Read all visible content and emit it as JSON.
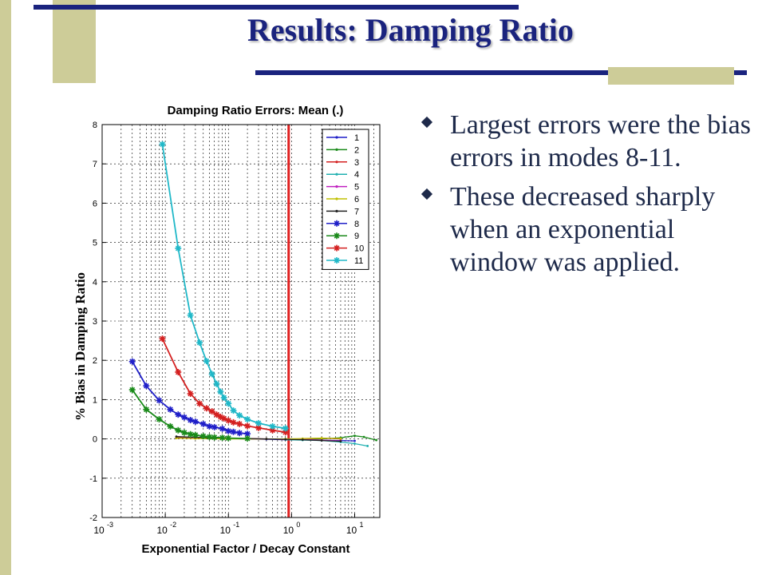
{
  "slide": {
    "title": "Results: Damping Ratio",
    "bullets": [
      "Largest errors were the bias errors in modes 8-11.",
      "These decreased sharply when an exponential window was applied."
    ]
  },
  "colors": {
    "title": "#1a237e",
    "deco_navy": "#1a237e",
    "deco_khaki": "#cdcc98",
    "marker_line": "#e02020"
  },
  "chart_data": {
    "type": "line",
    "title": "Damping Ratio Errors: Mean (.)",
    "xlabel": "Exponential Factor / Decay Constant",
    "ylabel": "% Bias in Damping Ratio",
    "x_scale": "log",
    "xlim": [
      0.001,
      25
    ],
    "ylim": [
      -2,
      8
    ],
    "x_ticks": [
      0.001,
      0.01,
      0.1,
      1,
      10
    ],
    "x_tick_labels": [
      {
        "base": "10",
        "exp": "-3"
      },
      {
        "base": "10",
        "exp": "-2"
      },
      {
        "base": "10",
        "exp": "-1"
      },
      {
        "base": "10",
        "exp": "0"
      },
      {
        "base": "10",
        "exp": "1"
      }
    ],
    "y_ticks": [
      -2,
      -1,
      0,
      1,
      2,
      3,
      4,
      5,
      6,
      7,
      8
    ],
    "y_tick_labels": [
      "-2",
      "-1",
      "0",
      "1",
      "2",
      "3",
      "4",
      "5",
      "6",
      "7",
      "8"
    ],
    "grid": true,
    "legend_position": "top-right",
    "vertical_line_x": 0.9,
    "series": [
      {
        "name": "1",
        "color": "#1f1fc8",
        "marker": "dot",
        "x": [
          0.015,
          0.03,
          0.06,
          0.1,
          0.2,
          0.4,
          0.8,
          1.5,
          3,
          6,
          10
        ],
        "y": [
          0.05,
          0.03,
          0.02,
          0.01,
          0.0,
          -0.01,
          -0.02,
          -0.02,
          -0.03,
          -0.04,
          -0.05
        ]
      },
      {
        "name": "2",
        "color": "#1a8a1a",
        "marker": "dot",
        "x": [
          0.015,
          0.03,
          0.06,
          0.1,
          0.2,
          0.4,
          0.8,
          1.5,
          3,
          6,
          10,
          14,
          22
        ],
        "y": [
          0.04,
          0.03,
          0.02,
          0.01,
          0.0,
          0.0,
          0.0,
          -0.01,
          0.0,
          0.03,
          0.08,
          0.05,
          -0.03
        ]
      },
      {
        "name": "3",
        "color": "#d42020",
        "marker": "dot",
        "x": [
          0.015,
          0.03,
          0.06,
          0.1,
          0.2,
          0.4,
          0.8,
          1.5,
          3,
          6
        ],
        "y": [
          0.03,
          0.02,
          0.02,
          0.01,
          0.01,
          0.0,
          -0.01,
          0.0,
          0.02,
          0.0
        ]
      },
      {
        "name": "4",
        "color": "#20b0b0",
        "marker": "dot",
        "x": [
          0.8,
          1.5,
          3,
          6,
          10,
          16
        ],
        "y": [
          -0.02,
          -0.03,
          -0.04,
          -0.08,
          -0.12,
          -0.18
        ]
      },
      {
        "name": "5",
        "color": "#c020c0",
        "marker": "dot",
        "x": [
          0.015,
          0.03,
          0.06,
          0.1,
          0.2,
          0.4,
          0.8,
          1.5,
          3,
          6
        ],
        "y": [
          0.02,
          0.02,
          0.01,
          0.01,
          0.0,
          0.0,
          -0.01,
          -0.01,
          -0.03,
          -0.05
        ]
      },
      {
        "name": "6",
        "color": "#c0c000",
        "marker": "dot",
        "x": [
          0.015,
          0.03,
          0.06,
          0.1,
          0.2,
          0.4,
          0.8,
          1.5,
          3,
          6
        ],
        "y": [
          0.02,
          0.01,
          0.01,
          0.0,
          0.0,
          0.0,
          0.0,
          0.01,
          0.02,
          0.01
        ]
      },
      {
        "name": "7",
        "color": "#202020",
        "marker": "dot",
        "x": [
          0.015,
          0.03,
          0.06,
          0.1,
          0.2,
          0.4,
          0.8,
          1.5,
          3,
          6
        ],
        "y": [
          0.06,
          0.04,
          0.03,
          0.02,
          0.01,
          0.0,
          -0.01,
          -0.02,
          -0.04,
          -0.06
        ]
      },
      {
        "name": "8",
        "color": "#1f1fc8",
        "marker": "star",
        "x": [
          0.003,
          0.005,
          0.008,
          0.012,
          0.016,
          0.02,
          0.025,
          0.03,
          0.04,
          0.05,
          0.06,
          0.08,
          0.1,
          0.12,
          0.15,
          0.2
        ],
        "y": [
          1.97,
          1.35,
          0.98,
          0.75,
          0.62,
          0.55,
          0.48,
          0.44,
          0.38,
          0.32,
          0.3,
          0.26,
          0.2,
          0.18,
          0.15,
          0.13
        ]
      },
      {
        "name": "9",
        "color": "#1a8a1a",
        "marker": "star",
        "x": [
          0.003,
          0.005,
          0.008,
          0.012,
          0.016,
          0.02,
          0.025,
          0.03,
          0.04,
          0.05,
          0.06,
          0.08,
          0.1,
          0.2
        ],
        "y": [
          1.25,
          0.75,
          0.5,
          0.32,
          0.22,
          0.16,
          0.12,
          0.1,
          0.07,
          0.05,
          0.04,
          0.03,
          0.02,
          0.01
        ]
      },
      {
        "name": "10",
        "color": "#d42020",
        "marker": "star",
        "x": [
          0.009,
          0.016,
          0.025,
          0.035,
          0.045,
          0.055,
          0.065,
          0.075,
          0.085,
          0.1,
          0.12,
          0.15,
          0.2,
          0.3,
          0.5,
          0.8
        ],
        "y": [
          2.55,
          1.7,
          1.15,
          0.9,
          0.78,
          0.7,
          0.62,
          0.56,
          0.52,
          0.47,
          0.42,
          0.38,
          0.33,
          0.28,
          0.22,
          0.17
        ]
      },
      {
        "name": "11",
        "color": "#20b8c8",
        "marker": "star",
        "x": [
          0.009,
          0.016,
          0.025,
          0.035,
          0.045,
          0.055,
          0.065,
          0.075,
          0.085,
          0.1,
          0.12,
          0.15,
          0.2,
          0.3,
          0.5,
          0.8
        ],
        "y": [
          7.5,
          4.85,
          3.15,
          2.45,
          1.98,
          1.65,
          1.4,
          1.2,
          1.05,
          0.9,
          0.72,
          0.6,
          0.5,
          0.4,
          0.32,
          0.27
        ]
      }
    ]
  }
}
